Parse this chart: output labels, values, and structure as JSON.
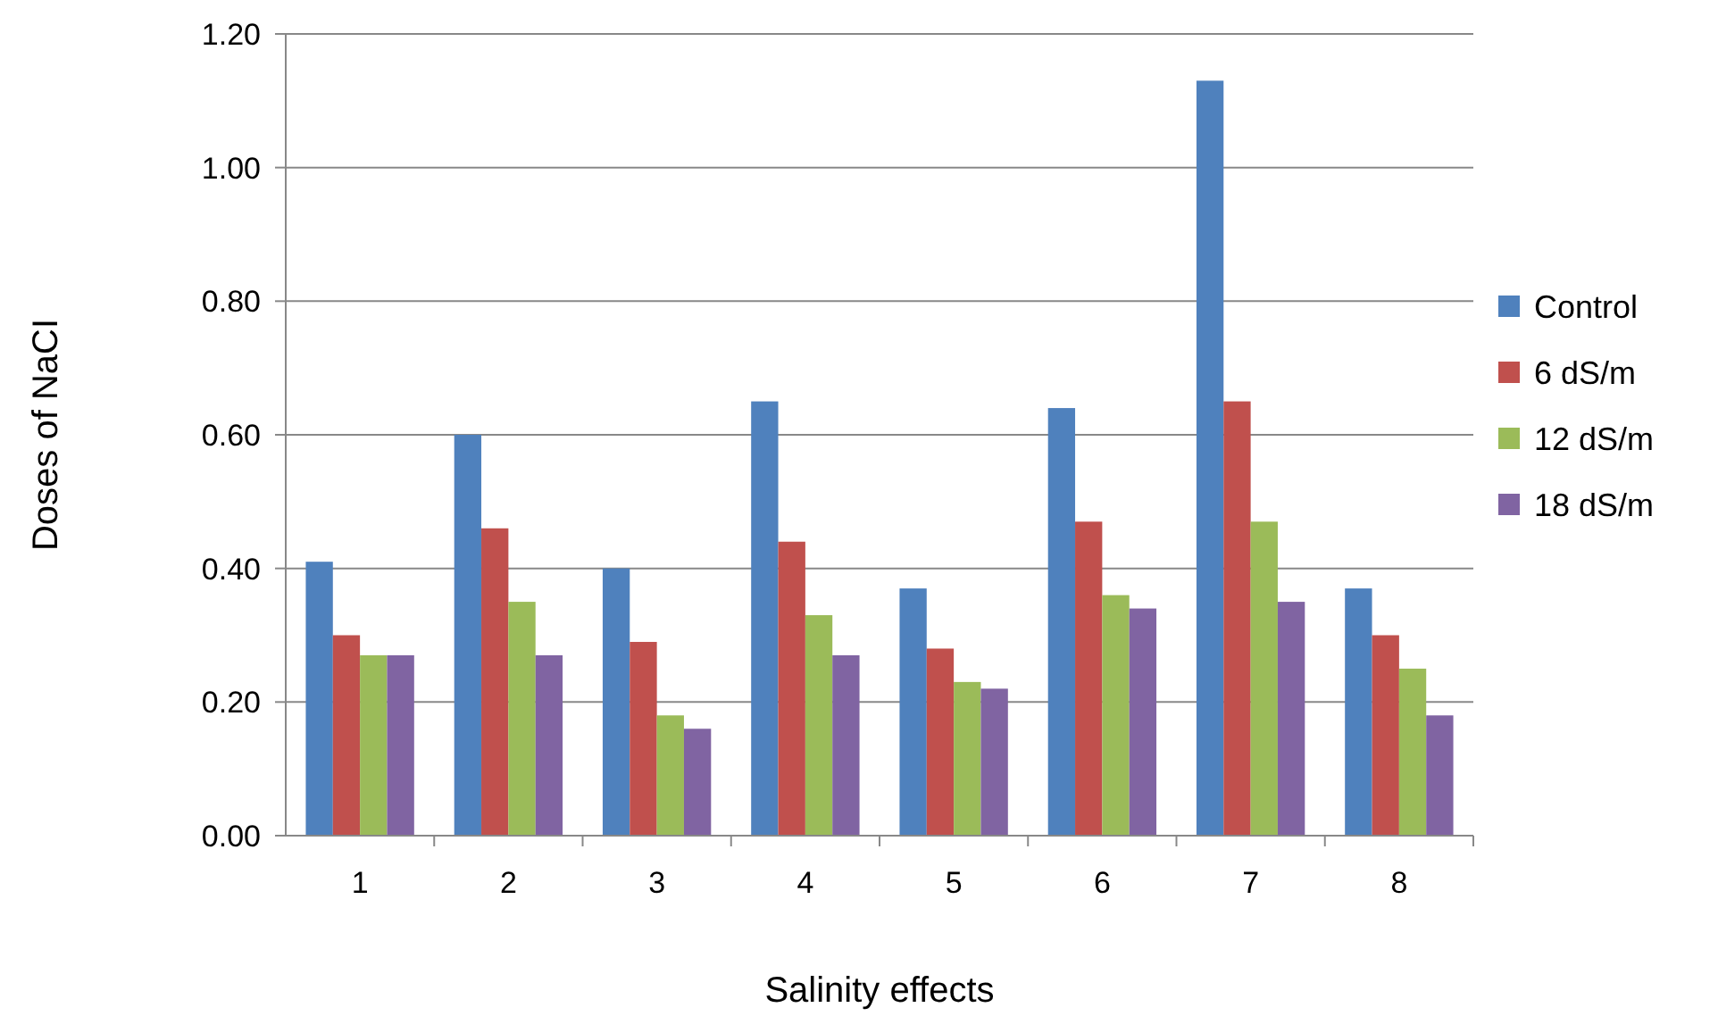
{
  "chart_data": {
    "type": "bar",
    "xlabel": "Salinity effects",
    "ylabel": "Doses of NaCI",
    "categories": [
      "1",
      "2",
      "3",
      "4",
      "5",
      "6",
      "7",
      "8"
    ],
    "series": [
      {
        "name": "Control",
        "color": "#4f81bd",
        "values": [
          0.41,
          0.6,
          0.4,
          0.65,
          0.37,
          0.64,
          1.13,
          0.37
        ]
      },
      {
        "name": "6 dS/m",
        "color": "#c0504d",
        "values": [
          0.3,
          0.46,
          0.29,
          0.44,
          0.28,
          0.47,
          0.65,
          0.3
        ]
      },
      {
        "name": "12 dS/m",
        "color": "#9bbb59",
        "values": [
          0.27,
          0.35,
          0.18,
          0.33,
          0.23,
          0.36,
          0.47,
          0.25
        ]
      },
      {
        "name": "18 dS/m",
        "color": "#8064a2",
        "values": [
          0.27,
          0.27,
          0.16,
          0.27,
          0.22,
          0.34,
          0.35,
          0.18
        ]
      }
    ],
    "ylim": [
      0,
      1.2
    ],
    "yticks": [
      {
        "value": 0,
        "label": "0.00"
      },
      {
        "value": 0.2,
        "label": "0.20"
      },
      {
        "value": 0.4,
        "label": "0.40"
      },
      {
        "value": 0.6,
        "label": "0.60"
      },
      {
        "value": 0.8,
        "label": "0.80"
      },
      {
        "value": 1.0,
        "label": "1.00"
      },
      {
        "value": 1.2,
        "label": "1.20"
      }
    ],
    "grid": "y",
    "legend": "right"
  }
}
